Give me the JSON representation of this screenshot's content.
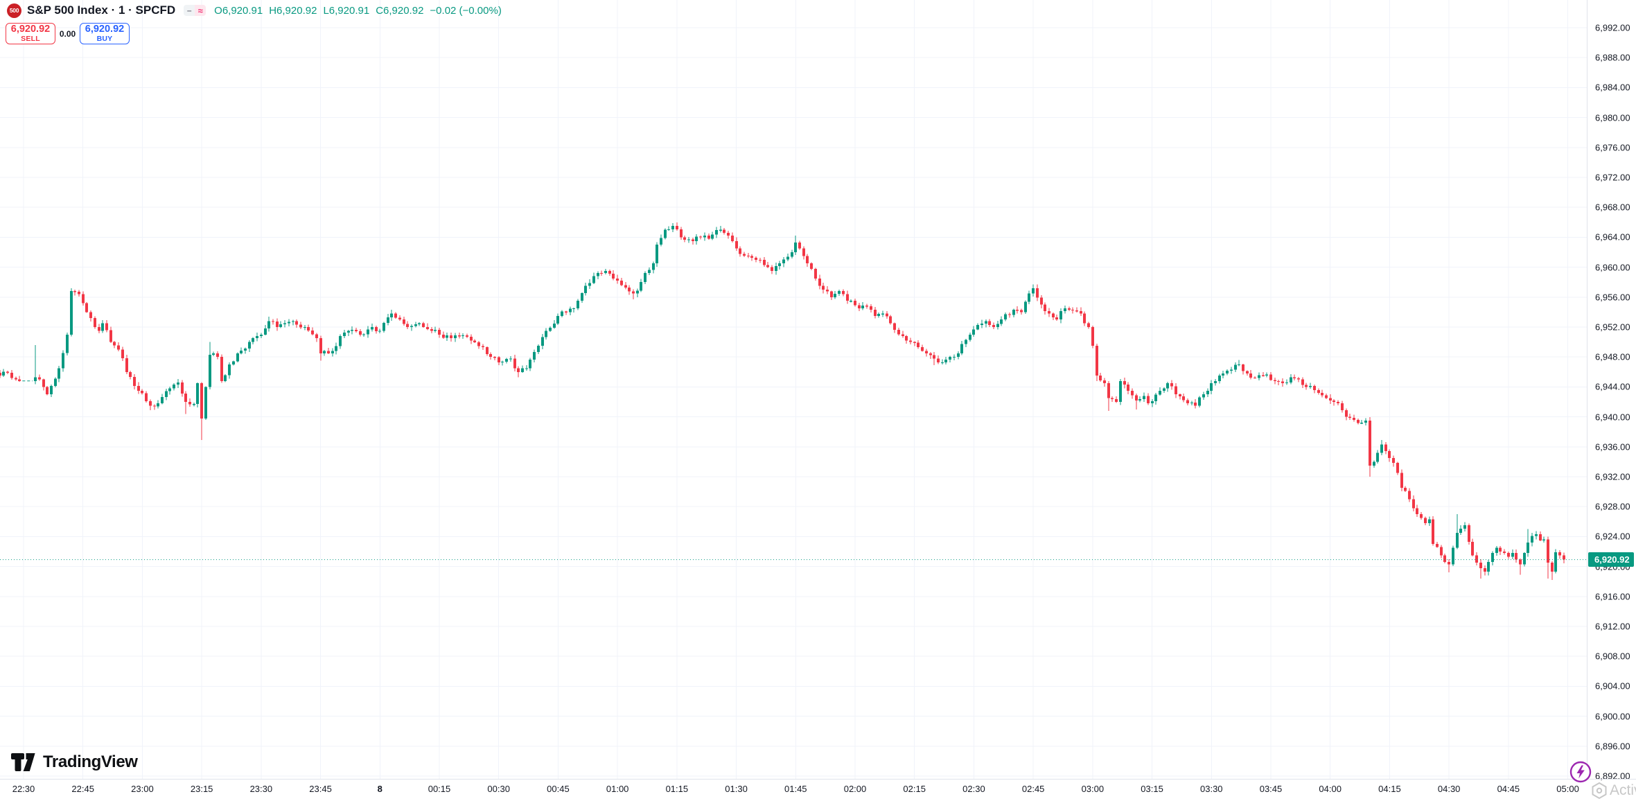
{
  "header": {
    "symbol_badge": "500",
    "title": "S&P 500 Index · 1 · SPCFD",
    "ohlc": {
      "open": "O6,920.91",
      "high": "H6,920.92",
      "low": "L6,920.91",
      "close": "C6,920.92",
      "change": "−0.02 (−0.00%)"
    }
  },
  "trade_panel": {
    "sell_price": "6,920.92",
    "sell_label": "SELL",
    "spread": "0.00",
    "buy_price": "6,920.92",
    "buy_label": "BUY"
  },
  "price_axis": {
    "labels": [
      "6,992.00",
      "6,988.00",
      "6,984.00",
      "6,980.00",
      "6,976.00",
      "6,972.00",
      "6,968.00",
      "6,964.00",
      "6,960.00",
      "6,956.00",
      "6,952.00",
      "6,948.00",
      "6,944.00",
      "6,940.00",
      "6,936.00",
      "6,932.00",
      "6,928.00",
      "6,924.00",
      "6,920.00",
      "6,916.00",
      "6,912.00",
      "6,908.00",
      "6,904.00",
      "6,900.00",
      "6,896.00",
      "6,892.00"
    ],
    "last_price": "6,920.92",
    "last_price_value": 6920.92
  },
  "time_axis": {
    "labels": [
      "22:30",
      "22:45",
      "23:00",
      "23:15",
      "23:30",
      "23:45",
      "8",
      "00:15",
      "00:30",
      "00:45",
      "01:00",
      "01:15",
      "01:30",
      "01:45",
      "02:00",
      "02:15",
      "02:30",
      "02:45",
      "03:00",
      "03:15",
      "03:30",
      "03:45",
      "04:00",
      "04:15",
      "04:30",
      "04:45",
      "05:00"
    ],
    "bold_label": "8"
  },
  "watermarks": {
    "tradingview": "TradingView",
    "activate_fragment": "Activ"
  },
  "colors": {
    "up": "#089981",
    "down": "#f23645",
    "sell": "#f23645",
    "buy": "#2962ff",
    "last_price_bg": "#089981",
    "grid": "#f0f3fa",
    "axis_text": "#131722",
    "separator": "#e0e3eb",
    "boost_purple": "#9c27b0"
  },
  "chart_data": {
    "type": "candlestick",
    "symbol": "SPCFD",
    "interval": "1 minute",
    "visible_price_range": [
      6892,
      6992
    ],
    "visible_time_range": [
      "22:24",
      "05:00"
    ],
    "last_close": 6920.92,
    "session_gap": {
      "from": "22:29",
      "to": "22:33",
      "price": 6944.8
    },
    "keypoints": [
      [
        "22:24",
        6945.5
      ],
      [
        "22:26",
        6945.9
      ],
      [
        "22:28",
        6945.0
      ],
      [
        "22:29",
        6944.8
      ],
      [
        "22:33",
        6945.3
      ],
      [
        "22:35",
        6944.0
      ],
      [
        "22:36",
        6943.0
      ],
      [
        "22:39",
        6946.5
      ],
      [
        "22:41",
        6951.0
      ],
      [
        "22:42",
        6956.8
      ],
      [
        "22:44",
        6956.4
      ],
      [
        "22:46",
        6954.0
      ],
      [
        "22:49",
        6951.5
      ],
      [
        "22:50",
        6952.5
      ],
      [
        "22:52",
        6950.0
      ],
      [
        "22:54",
        6949.0
      ],
      [
        "22:56",
        6946.0
      ],
      [
        "22:59",
        6943.5
      ],
      [
        "23:02",
        6941.5
      ],
      [
        "23:04",
        6941.8
      ],
      [
        "23:07",
        6943.8
      ],
      [
        "23:09",
        6944.6
      ],
      [
        "23:11",
        6942.0
      ],
      [
        "23:13",
        6941.7
      ],
      [
        "23:14",
        6944.5
      ],
      [
        "23:15",
        6939.8
      ],
      [
        "23:16",
        6944.0
      ],
      [
        "23:17",
        6948.3
      ],
      [
        "23:19",
        6948.0
      ],
      [
        "23:20",
        6944.8
      ],
      [
        "23:22",
        6947.0
      ],
      [
        "23:24",
        6948.5
      ],
      [
        "23:27",
        6950.0
      ],
      [
        "23:30",
        6951.0
      ],
      [
        "23:32",
        6952.8
      ],
      [
        "23:34",
        6952.0
      ],
      [
        "23:36",
        6952.5
      ],
      [
        "23:38",
        6952.8
      ],
      [
        "23:41",
        6952.0
      ],
      [
        "23:44",
        6950.5
      ],
      [
        "23:45",
        6948.5
      ],
      [
        "23:48",
        6948.8
      ],
      [
        "23:50",
        6950.8
      ],
      [
        "23:52",
        6951.5
      ],
      [
        "23:55",
        6951.0
      ],
      [
        "23:58",
        6952.0
      ],
      [
        "00:00",
        6951.5
      ],
      [
        "00:03",
        6953.8
      ],
      [
        "00:05",
        6953.0
      ],
      [
        "00:07",
        6952.0
      ],
      [
        "00:10",
        6952.5
      ],
      [
        "00:13",
        6951.5
      ],
      [
        "00:15",
        6951.0
      ],
      [
        "00:18",
        6950.5
      ],
      [
        "00:20",
        6950.8
      ],
      [
        "00:23",
        6950.2
      ],
      [
        "00:26",
        6949.3
      ],
      [
        "00:28",
        6948.0
      ],
      [
        "00:30",
        6947.3
      ],
      [
        "00:33",
        6947.8
      ],
      [
        "00:35",
        6946.0
      ],
      [
        "00:37",
        6946.5
      ],
      [
        "00:40",
        6949.5
      ],
      [
        "00:42",
        6951.5
      ],
      [
        "00:45",
        6953.5
      ],
      [
        "00:47",
        6954.0
      ],
      [
        "00:49",
        6954.5
      ],
      [
        "00:52",
        6957.5
      ],
      [
        "00:54",
        6958.8
      ],
      [
        "00:57",
        6959.5
      ],
      [
        "00:59",
        6958.5
      ],
      [
        "01:02",
        6957.3
      ],
      [
        "01:04",
        6956.5
      ],
      [
        "01:06",
        6958.0
      ],
      [
        "01:09",
        6960.5
      ],
      [
        "01:10",
        6963.0
      ],
      [
        "01:12",
        6965.0
      ],
      [
        "01:14",
        6965.5
      ],
      [
        "01:16",
        6964.0
      ],
      [
        "01:19",
        6963.5
      ],
      [
        "01:21",
        6964.0
      ],
      [
        "01:23",
        6963.8
      ],
      [
        "01:26",
        6965.0
      ],
      [
        "01:28",
        6964.2
      ],
      [
        "01:30",
        6962.5
      ],
      [
        "01:33",
        6961.5
      ],
      [
        "01:35",
        6961.0
      ],
      [
        "01:37",
        6960.3
      ],
      [
        "01:39",
        6959.5
      ],
      [
        "01:41",
        6960.5
      ],
      [
        "01:44",
        6962.0
      ],
      [
        "01:45",
        6963.3
      ],
      [
        "01:47",
        6961.5
      ],
      [
        "01:50",
        6958.5
      ],
      [
        "01:52",
        6957.0
      ],
      [
        "01:54",
        6956.0
      ],
      [
        "01:56",
        6956.8
      ],
      [
        "01:58",
        6955.5
      ],
      [
        "02:01",
        6954.5
      ],
      [
        "02:03",
        6954.8
      ],
      [
        "02:05",
        6953.5
      ],
      [
        "02:07",
        6953.8
      ],
      [
        "02:09",
        6952.5
      ],
      [
        "02:12",
        6950.8
      ],
      [
        "02:14",
        6950.0
      ],
      [
        "02:16",
        6949.3
      ],
      [
        "02:18",
        6948.5
      ],
      [
        "02:20",
        6947.8
      ],
      [
        "02:22",
        6947.3
      ],
      [
        "02:24",
        6948.0
      ],
      [
        "02:26",
        6948.5
      ],
      [
        "02:29",
        6951.0
      ],
      [
        "02:31",
        6952.3
      ],
      [
        "02:33",
        6952.8
      ],
      [
        "02:35",
        6952.0
      ],
      [
        "02:37",
        6953.0
      ],
      [
        "02:40",
        6954.3
      ],
      [
        "02:42",
        6954.0
      ],
      [
        "02:44",
        6956.5
      ],
      [
        "02:45",
        6957.2
      ],
      [
        "02:47",
        6955.0
      ],
      [
        "02:49",
        6953.8
      ],
      [
        "02:51",
        6953.0
      ],
      [
        "02:53",
        6954.5
      ],
      [
        "02:55",
        6954.2
      ],
      [
        "02:57",
        6953.8
      ],
      [
        "02:59",
        6952.0
      ],
      [
        "03:00",
        6949.5
      ],
      [
        "03:01",
        6945.5
      ],
      [
        "03:03",
        6944.5
      ],
      [
        "03:04",
        6942.5
      ],
      [
        "03:06",
        6942.0
      ],
      [
        "03:07",
        6944.8
      ],
      [
        "03:09",
        6943.5
      ],
      [
        "03:11",
        6942.2
      ],
      [
        "03:13",
        6942.8
      ],
      [
        "03:14",
        6941.8
      ],
      [
        "03:17",
        6943.5
      ],
      [
        "03:19",
        6944.5
      ],
      [
        "03:21",
        6943.0
      ],
      [
        "03:24",
        6941.8
      ],
      [
        "03:26",
        6941.5
      ],
      [
        "03:28",
        6943.0
      ],
      [
        "03:30",
        6944.5
      ],
      [
        "03:33",
        6945.8
      ],
      [
        "03:35",
        6946.3
      ],
      [
        "03:37",
        6947.0
      ],
      [
        "03:39",
        6945.8
      ],
      [
        "03:41",
        6945.2
      ],
      [
        "03:43",
        6945.5
      ],
      [
        "03:46",
        6944.8
      ],
      [
        "03:48",
        6944.5
      ],
      [
        "03:50",
        6945.3
      ],
      [
        "03:52",
        6945.0
      ],
      [
        "03:54",
        6944.0
      ],
      [
        "03:57",
        6943.2
      ],
      [
        "03:59",
        6942.5
      ],
      [
        "04:01",
        6942.0
      ],
      [
        "04:02",
        6941.8
      ],
      [
        "04:04",
        6940.0
      ],
      [
        "04:06",
        6939.6
      ],
      [
        "04:08",
        6939.2
      ],
      [
        "04:09",
        6939.5
      ],
      [
        "04:10",
        6933.5
      ],
      [
        "04:11",
        6934.0
      ],
      [
        "04:12",
        6935.2
      ],
      [
        "04:13",
        6936.3
      ],
      [
        "04:15",
        6934.5
      ],
      [
        "04:17",
        6932.5
      ],
      [
        "04:18",
        6930.5
      ],
      [
        "04:20",
        6929.0
      ],
      [
        "04:22",
        6927.0
      ],
      [
        "04:24",
        6925.8
      ],
      [
        "04:25",
        6926.3
      ],
      [
        "04:26",
        6923.0
      ],
      [
        "04:28",
        6921.5
      ],
      [
        "04:30",
        6920.3
      ],
      [
        "04:31",
        6922.5
      ],
      [
        "04:32",
        6924.5
      ],
      [
        "04:34",
        6925.5
      ],
      [
        "04:35",
        6923.3
      ],
      [
        "04:36",
        6921.5
      ],
      [
        "04:38",
        6919.8
      ],
      [
        "04:39",
        6919.3
      ],
      [
        "04:41",
        6921.8
      ],
      [
        "04:42",
        6922.5
      ],
      [
        "04:43",
        6922.0
      ],
      [
        "04:45",
        6921.3
      ],
      [
        "04:46",
        6921.8
      ],
      [
        "04:48",
        6920.3
      ],
      [
        "04:49",
        6921.8
      ],
      [
        "04:50",
        6923.2
      ],
      [
        "04:52",
        6924.3
      ],
      [
        "04:53",
        6923.5
      ],
      [
        "04:54",
        6923.6
      ],
      [
        "04:55",
        6920.5
      ],
      [
        "04:56",
        6919.3
      ],
      [
        "04:57",
        6921.9
      ],
      [
        "04:58",
        6921.5
      ],
      [
        "04:59",
        6920.92
      ]
    ],
    "wick_events": [
      [
        "22:33",
        "high",
        6949.6
      ],
      [
        "23:02",
        "low",
        6940.9
      ],
      [
        "23:11",
        "low",
        6940.4
      ],
      [
        "23:15",
        "low",
        6936.9
      ],
      [
        "23:17",
        "high",
        6950.0
      ],
      [
        "23:32",
        "high",
        6953.4
      ],
      [
        "23:45",
        "low",
        6947.5
      ],
      [
        "00:03",
        "high",
        6954.3
      ],
      [
        "00:35",
        "low",
        6945.3
      ],
      [
        "01:04",
        "low",
        6955.7
      ],
      [
        "01:14",
        "high",
        6965.9
      ],
      [
        "01:26",
        "high",
        6965.5
      ],
      [
        "01:45",
        "high",
        6964.2
      ],
      [
        "02:20",
        "low",
        6946.9
      ],
      [
        "02:45",
        "high",
        6957.7
      ],
      [
        "03:01",
        "low",
        6944.8
      ],
      [
        "03:04",
        "low",
        6940.8
      ],
      [
        "03:11",
        "low",
        6941.0
      ],
      [
        "03:37",
        "high",
        6947.6
      ],
      [
        "04:10",
        "low",
        6932.0
      ],
      [
        "04:13",
        "high",
        6936.9
      ],
      [
        "04:30",
        "low",
        6919.2
      ],
      [
        "04:32",
        "high",
        6927.0
      ],
      [
        "04:38",
        "low",
        6918.4
      ],
      [
        "04:48",
        "low",
        6918.9
      ],
      [
        "04:50",
        "high",
        6925.0
      ],
      [
        "04:55",
        "low",
        6918.4
      ],
      [
        "04:56",
        "low",
        6918.2
      ]
    ]
  }
}
